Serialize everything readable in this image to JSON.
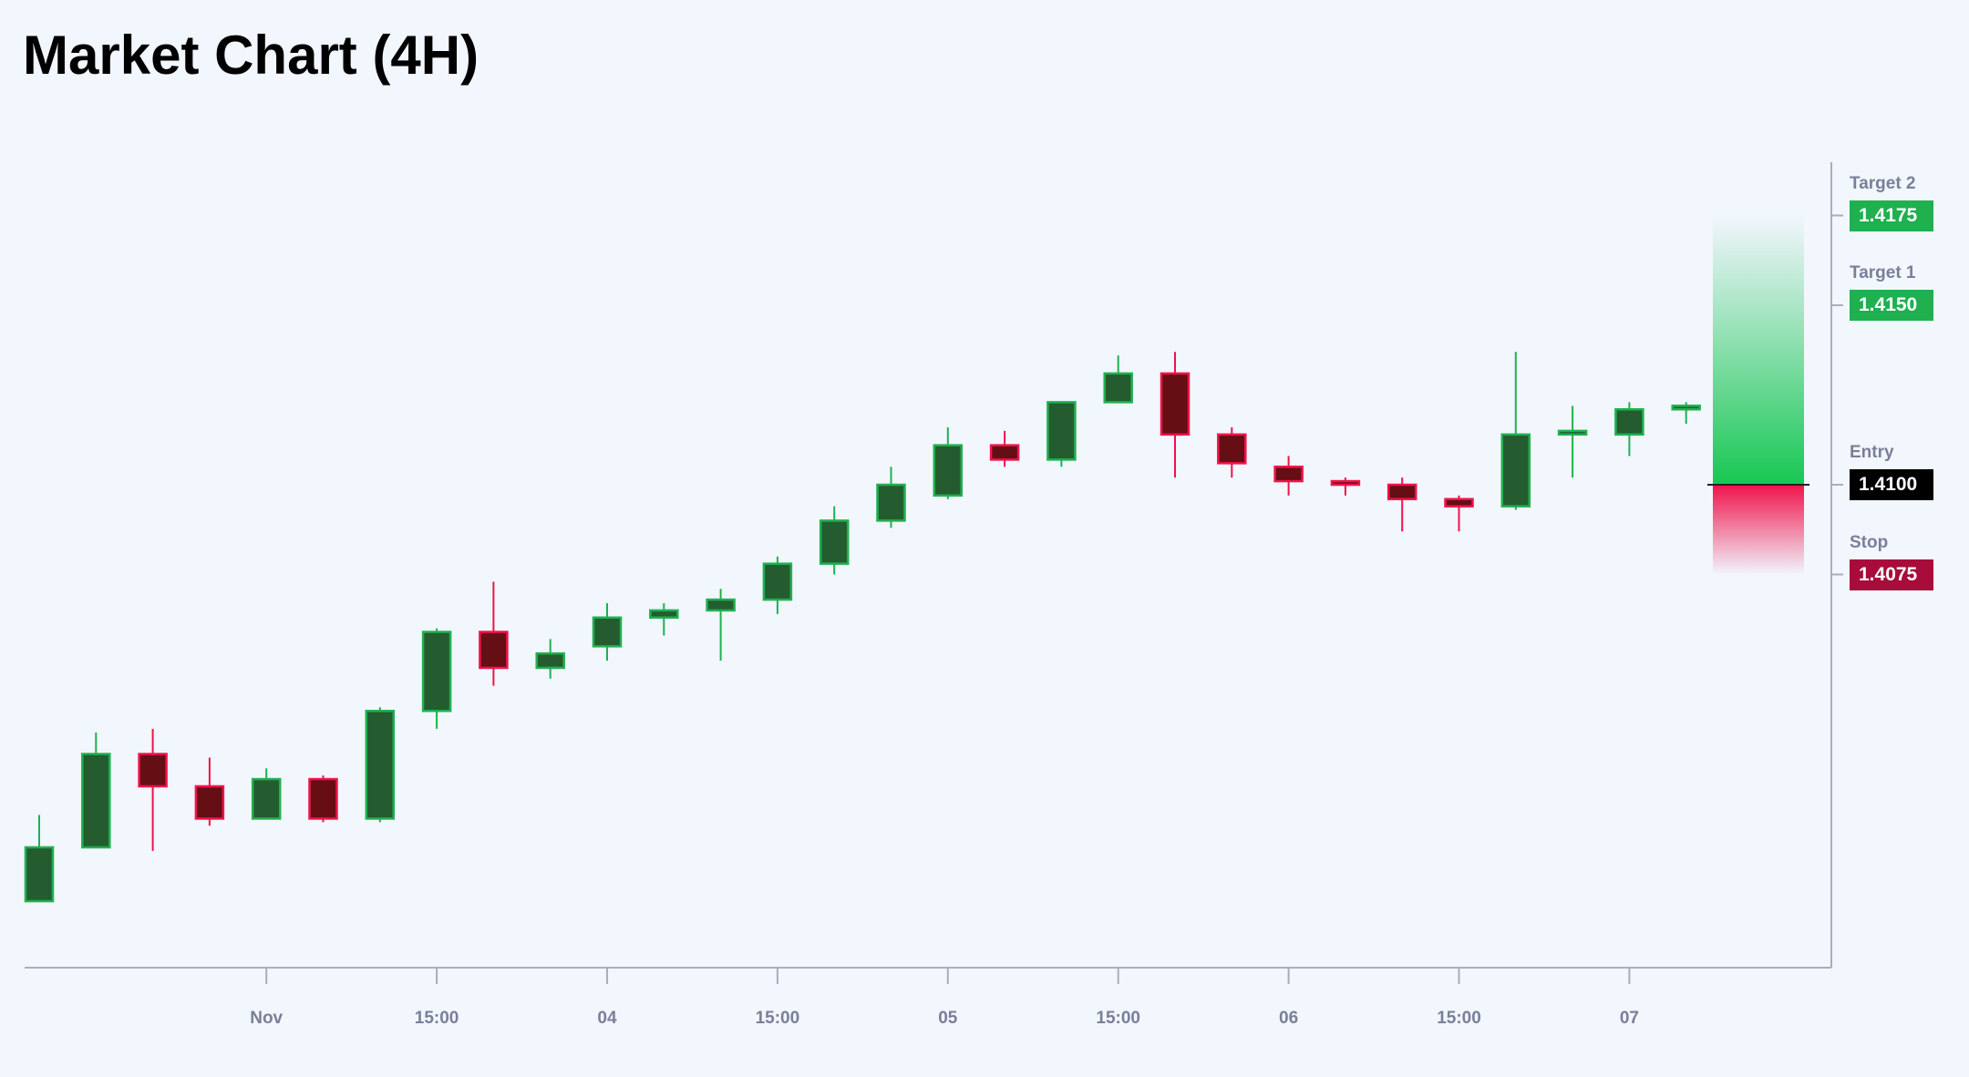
{
  "title": "Market Chart (4H)",
  "chart_data": {
    "type": "candlestick",
    "title": "Market Chart (4H)",
    "x_tick_labels": [
      {
        "index": 4,
        "label": "Nov"
      },
      {
        "index": 7,
        "label": "15:00"
      },
      {
        "index": 10,
        "label": "04"
      },
      {
        "index": 13,
        "label": "15:00"
      },
      {
        "index": 16,
        "label": "05"
      },
      {
        "index": 19,
        "label": "15:00"
      },
      {
        "index": 22,
        "label": "06"
      },
      {
        "index": 25,
        "label": "15:00"
      },
      {
        "index": 28,
        "label": "07"
      }
    ],
    "ohlc": [
      [
        1.3984,
        1.4008,
        1.3984,
        1.3999
      ],
      [
        1.3999,
        1.4031,
        1.3999,
        1.4025
      ],
      [
        1.4025,
        1.4032,
        1.3998,
        1.4016
      ],
      [
        1.4016,
        1.4024,
        1.4005,
        1.4007
      ],
      [
        1.4007,
        1.4021,
        1.4007,
        1.4018
      ],
      [
        1.4018,
        1.4019,
        1.4006,
        1.4007
      ],
      [
        1.4007,
        1.4038,
        1.4006,
        1.4037
      ],
      [
        1.4037,
        1.406,
        1.4032,
        1.4059
      ],
      [
        1.4059,
        1.4073,
        1.4044,
        1.4049
      ],
      [
        1.4049,
        1.4057,
        1.4046,
        1.4053
      ],
      [
        1.4055,
        1.4067,
        1.4051,
        1.4063
      ],
      [
        1.4063,
        1.4067,
        1.4058,
        1.4065
      ],
      [
        1.4065,
        1.4071,
        1.4051,
        1.4068
      ],
      [
        1.4068,
        1.408,
        1.4064,
        1.4078
      ],
      [
        1.4078,
        1.4094,
        1.4075,
        1.409
      ],
      [
        1.409,
        1.4105,
        1.4088,
        1.41
      ],
      [
        1.4097,
        1.4116,
        1.4096,
        1.4111
      ],
      [
        1.4111,
        1.4115,
        1.4105,
        1.4107
      ],
      [
        1.4107,
        1.4123,
        1.4105,
        1.4123
      ],
      [
        1.4123,
        1.4136,
        1.4123,
        1.4131
      ],
      [
        1.4131,
        1.4137,
        1.4102,
        1.4114
      ],
      [
        1.4114,
        1.4116,
        1.4102,
        1.4106
      ],
      [
        1.4105,
        1.4108,
        1.4097,
        1.4101
      ],
      [
        1.4101,
        1.4102,
        1.4097,
        1.41
      ],
      [
        1.41,
        1.4102,
        1.4087,
        1.4096
      ],
      [
        1.4096,
        1.4097,
        1.4087,
        1.4094
      ],
      [
        1.4094,
        1.4137,
        1.4093,
        1.4114
      ],
      [
        1.4114,
        1.4122,
        1.4102,
        1.4115
      ],
      [
        1.4114,
        1.4123,
        1.4108,
        1.4121
      ],
      [
        1.4121,
        1.4123,
        1.4117,
        1.4122
      ]
    ],
    "levels": [
      {
        "name": "Target 2",
        "value": "1.4175",
        "price": 1.4175,
        "color": "#1fb050"
      },
      {
        "name": "Target 1",
        "value": "1.4150",
        "price": 1.415,
        "color": "#1fb050"
      },
      {
        "name": "Entry",
        "value": "1.4100",
        "price": 1.41,
        "color": "#000000"
      },
      {
        "name": "Stop",
        "value": "1.4075",
        "price": 1.4075,
        "color": "#a80c3a"
      }
    ],
    "position": {
      "entry": 1.41,
      "target": 1.4175,
      "stop": 1.4075
    },
    "colors": {
      "up_body": "#245c30",
      "up_border": "#1fb14f",
      "down_body": "#650e14",
      "down_border": "#f0134b",
      "axis": "#a9aebb",
      "tick_text": "#7a7f99"
    },
    "grid": false
  }
}
